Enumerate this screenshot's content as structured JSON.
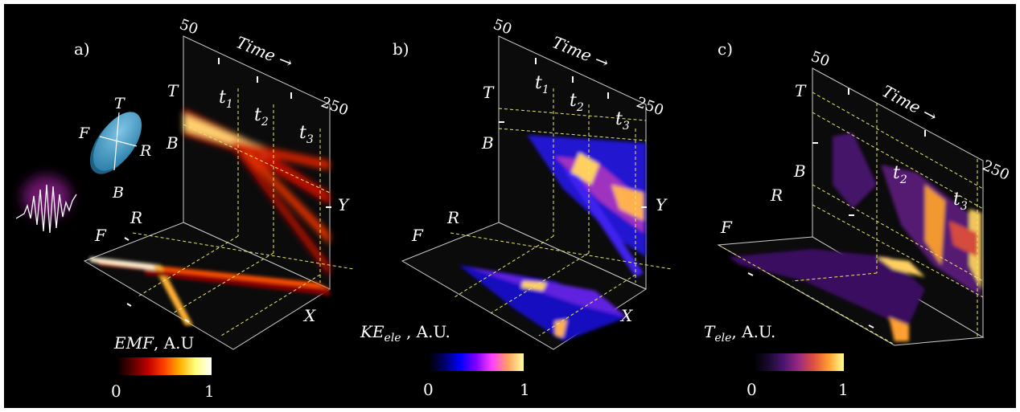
{
  "panels": [
    {
      "tag": "a)",
      "time_label": "Time →",
      "time_start": "50",
      "time_end": "250",
      "markers": [
        "t1",
        "t2",
        "t3"
      ],
      "marker_main": "t",
      "marker_subs": [
        "1",
        "2",
        "3"
      ],
      "axis_letters": {
        "T": "T",
        "B": "B",
        "R": "R",
        "F": "F",
        "X": "X",
        "Y": "Y"
      },
      "colorbar_title_main": "EMF",
      "colorbar_title_rest": ", A.U",
      "colorbar_min": "0",
      "colorbar_max": "1",
      "colormap": [
        "#000000",
        "#5a0000",
        "#c00000",
        "#ff4000",
        "#ffb000",
        "#ffff80",
        "#ffffff"
      ],
      "beam_letters": {
        "T": "T",
        "B": "B",
        "R": "R",
        "F": "F"
      }
    },
    {
      "tag": "b)",
      "time_label": "Time →",
      "time_start": "",
      "time_end": "250",
      "markers": [
        "t1",
        "t2",
        "t3"
      ],
      "marker_main": "t",
      "marker_subs": [
        "1",
        "2",
        "3"
      ],
      "axis_letters": {
        "T": "T",
        "B": "B",
        "R": "R",
        "F": "F",
        "X": "X",
        "Y": "Y"
      },
      "colorbar_title_main": "KE",
      "colorbar_title_sub": "ele",
      "colorbar_title_rest": " , A.U.",
      "colorbar_min": "0",
      "colorbar_max": "1",
      "colormap": [
        "#000000",
        "#00006a",
        "#0000ff",
        "#8000ff",
        "#ff40ff",
        "#ffa060",
        "#ffffa0"
      ]
    },
    {
      "tag": "c)",
      "time_label": "Time →",
      "time_start": "50",
      "time_end": "250",
      "markers": [
        "t2",
        "t3"
      ],
      "marker_main": "t",
      "marker_subs": [
        "2",
        "3"
      ],
      "axis_letters": {
        "T": "T",
        "B": "B",
        "R": "R",
        "F": "F"
      },
      "colorbar_title_main": "T",
      "colorbar_title_sub": "ele",
      "colorbar_title_rest": ", A.U.",
      "colorbar_min": "0",
      "colorbar_max": "1",
      "colormap": [
        "#000000",
        "#1a0a30",
        "#4a1570",
        "#9a2a80",
        "#e05040",
        "#ffa030",
        "#ffff90"
      ]
    }
  ],
  "extra": {
    "top_50_b": "50"
  }
}
